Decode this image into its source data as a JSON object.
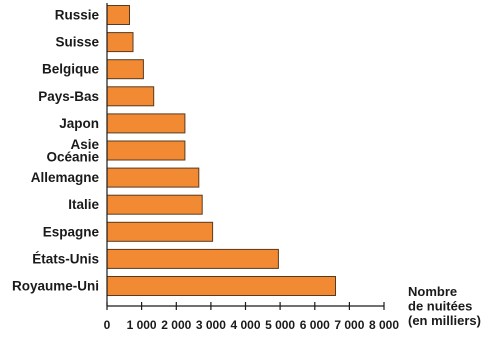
{
  "chart_data": {
    "type": "bar",
    "orientation": "horizontal",
    "categories": [
      "Russie",
      "Suisse",
      "Belgique",
      "Pays-Bas",
      "Japon",
      "Asie\nOcéanie",
      "Allemagne",
      "Italie",
      "Espagne",
      "États-Unis",
      "Royaume-Uni"
    ],
    "values": [
      650,
      750,
      1050,
      1350,
      2250,
      2250,
      2650,
      2750,
      3050,
      4950,
      6600
    ],
    "xlabel": "Nombre\nde nuitées\n(en milliers)",
    "xlim": [
      0,
      8000
    ],
    "xticks": [
      0,
      1000,
      2000,
      3000,
      4000,
      5000,
      6000,
      7000,
      8000
    ],
    "xtick_labels": [
      "0",
      "1 000",
      "2 000",
      "3 000",
      "4 000",
      "5 000",
      "6 000",
      "7 000",
      "8 000"
    ],
    "grid": false,
    "bar_color": "#f28a33",
    "bar_stroke": "#5a3a1e"
  }
}
